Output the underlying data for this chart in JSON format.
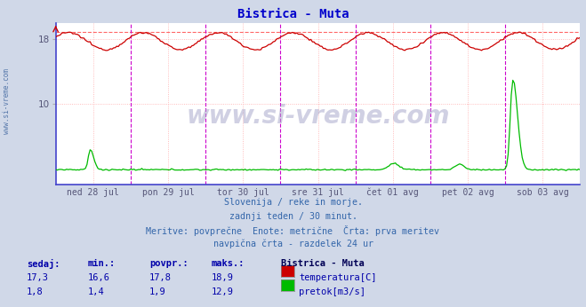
{
  "title": "Bistrica - Muta",
  "title_color": "#0000cc",
  "bg_color": "#d0d8e8",
  "plot_bg_color": "#ffffff",
  "grid_color": "#ffaaaa",
  "grid_color2": "#ddddff",
  "x_labels": [
    "ned 28 jul",
    "pon 29 jul",
    "tor 30 jul",
    "sre 31 jul",
    "čet 01 avg",
    "pet 02 avg",
    "sob 03 avg"
  ],
  "y_ticks": [
    10,
    18
  ],
  "ylim": [
    0,
    20
  ],
  "temp_color": "#cc0000",
  "flow_color": "#00bb00",
  "dashed_line_color": "#ff6666",
  "vline_color": "#cc00cc",
  "left_spine_color": "#4444cc",
  "bottom_spine_color": "#4444cc",
  "temp_max": 18.9,
  "flow_max": 12.9,
  "footer_lines": [
    "Slovenija / reke in morje.",
    "zadnji teden / 30 minut.",
    "Meritve: povprečne  Enote: metrične  Črta: prva meritev",
    "navpična črta - razdelek 24 ur"
  ],
  "footer_color": "#3366aa",
  "legend_title": "Bistrica - Muta",
  "legend_title_color": "#000055",
  "legend_items": [
    "temperatura[C]",
    "pretok[m3/s]"
  ],
  "legend_colors": [
    "#cc0000",
    "#00bb00"
  ],
  "stats_headers": [
    "sedaj:",
    "min.:",
    "povpr.:",
    "maks.:"
  ],
  "stats_temp": [
    "17,3",
    "16,6",
    "17,8",
    "18,9"
  ],
  "stats_flow": [
    "1,8",
    "1,4",
    "1,9",
    "12,9"
  ],
  "stats_color": "#0000aa",
  "watermark": "www.si-vreme.com",
  "watermark_color": "#aaaacc",
  "left_label": "www.si-vreme.com",
  "left_label_color": "#5577aa",
  "n_points": 336,
  "days": 7
}
